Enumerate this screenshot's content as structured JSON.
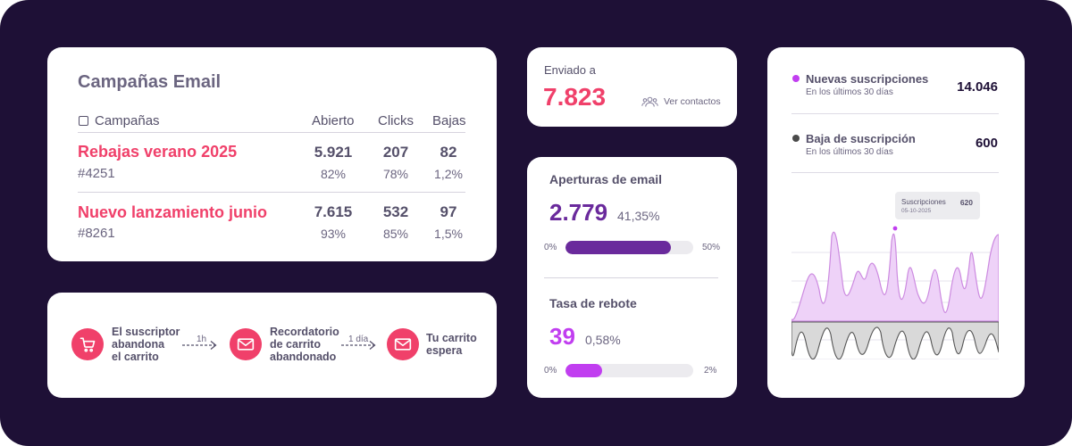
{
  "campaigns": {
    "title": "Campañas Email",
    "headers": {
      "campaigns": "Campañas",
      "opened": "Abierto",
      "clicks": "Clicks",
      "unsubs": "Bajas"
    },
    "rows": [
      {
        "name": "Rebajas verano 2025",
        "id": "#4251",
        "opened": "5.921",
        "opened_pct": "82%",
        "clicks": "207",
        "clicks_pct": "78%",
        "unsubs": "82",
        "unsubs_pct": "1,2%"
      },
      {
        "name": "Nuevo lanzamiento junio",
        "id": "#8261",
        "opened": "7.615",
        "opened_pct": "93%",
        "clicks": "532",
        "clicks_pct": "85%",
        "unsubs": "97",
        "unsubs_pct": "1,5%"
      }
    ]
  },
  "flow": {
    "steps": [
      {
        "label_lines": [
          "El suscriptor",
          "abandona",
          "el carrito"
        ],
        "icon": "cart-icon"
      },
      {
        "label_lines": [
          "Recordatorio",
          "de carrito",
          "abandonado"
        ],
        "icon": "mail-icon"
      },
      {
        "label_lines": [
          "Tu carrito",
          "espera"
        ],
        "icon": "mail-icon"
      }
    ],
    "delays": [
      "1h",
      "1 día"
    ]
  },
  "sent": {
    "label": "Enviado a",
    "value": "7.823",
    "contacts_link": "Ver contactos"
  },
  "opens": {
    "title": "Aperturas de email",
    "value": "2.779",
    "pct": "41,35%",
    "bar_min": "0%",
    "bar_max": "50%",
    "bar_fraction": 0.827
  },
  "bounce": {
    "title": "Tasa de rebote",
    "value": "39",
    "pct": "0,58%",
    "bar_min": "0%",
    "bar_max": "2%",
    "bar_fraction": 0.29
  },
  "subscriptions": {
    "new": {
      "label": "Nuevas suscripciones",
      "desc": "En los últimos 30 días",
      "value": "14.046",
      "color": "#c13ef0"
    },
    "unsub": {
      "label": "Baja de suscripción",
      "desc": "En los últimos 30 días",
      "value": "600",
      "color": "#4a4a4a"
    },
    "tooltip": {
      "name": "Suscripciones",
      "date": "05-10-2025",
      "value": "620"
    }
  },
  "colors": {
    "background": "#1e1036",
    "accent_pink": "#f0406a",
    "accent_purple": "#6a2a9c",
    "accent_violet": "#c13ef0"
  }
}
